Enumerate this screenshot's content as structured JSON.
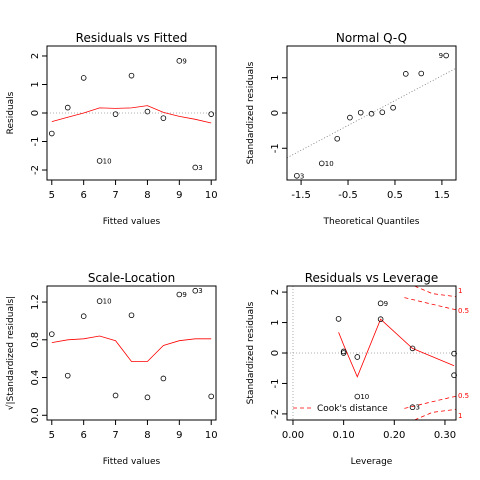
{
  "chart_data": [
    {
      "type": "scatter",
      "title": "Residuals vs Fitted",
      "xlabel": "Fitted values",
      "ylabel": "Residuals",
      "xlim": [
        4.85,
        10.15
      ],
      "ylim": [
        -2.35,
        2.35
      ],
      "xticks": [
        "5",
        "6",
        "7",
        "8",
        "9",
        "10"
      ],
      "yticks": [
        "-2",
        "-1",
        "0",
        "1",
        "2"
      ],
      "reference_line": 0,
      "points": [
        {
          "x": 5.0,
          "y": -0.72,
          "label": ""
        },
        {
          "x": 5.5,
          "y": 0.19,
          "label": ""
        },
        {
          "x": 6.0,
          "y": 1.23,
          "label": ""
        },
        {
          "x": 6.5,
          "y": -1.68,
          "label": "10"
        },
        {
          "x": 7.0,
          "y": -0.04,
          "label": ""
        },
        {
          "x": 7.5,
          "y": 1.31,
          "label": ""
        },
        {
          "x": 8.0,
          "y": 0.05,
          "label": ""
        },
        {
          "x": 8.5,
          "y": -0.18,
          "label": ""
        },
        {
          "x": 9.0,
          "y": 1.83,
          "label": "9"
        },
        {
          "x": 9.5,
          "y": -1.91,
          "label": "3"
        },
        {
          "x": 10.0,
          "y": -0.04,
          "label": ""
        }
      ],
      "smooth": {
        "x": [
          5.0,
          5.5,
          6.0,
          6.5,
          7.0,
          7.5,
          8.0,
          8.5,
          9.0,
          9.5,
          10.0
        ],
        "y": [
          -0.3,
          -0.15,
          0.0,
          0.18,
          0.16,
          0.18,
          0.26,
          0.02,
          -0.12,
          -0.22,
          -0.35
        ]
      }
    },
    {
      "type": "scatter",
      "title": "Normal Q-Q",
      "xlabel": "Theoretical Quantiles",
      "ylabel": "Standardized residuals",
      "xlim": [
        -1.8,
        1.8
      ],
      "ylim": [
        -1.9,
        1.9
      ],
      "xticks": [
        "-1.5",
        "-0.5",
        "0.5",
        "1.5"
      ],
      "yticks": [
        "-1",
        "0",
        "1"
      ],
      "points": [
        {
          "x": -1.59,
          "y": -1.78,
          "label": "3"
        },
        {
          "x": -1.06,
          "y": -1.43,
          "label": "10"
        },
        {
          "x": -0.73,
          "y": -0.73,
          "label": ""
        },
        {
          "x": -0.46,
          "y": -0.13,
          "label": ""
        },
        {
          "x": -0.23,
          "y": 0.01,
          "label": ""
        },
        {
          "x": 0.0,
          "y": -0.02,
          "label": ""
        },
        {
          "x": 0.23,
          "y": 0.02,
          "label": ""
        },
        {
          "x": 0.46,
          "y": 0.15,
          "label": ""
        },
        {
          "x": 0.73,
          "y": 1.11,
          "label": ""
        },
        {
          "x": 1.06,
          "y": 1.12,
          "label": ""
        },
        {
          "x": 1.59,
          "y": 1.63,
          "label": "9"
        }
      ],
      "qqline": {
        "x": [
          -1.8,
          1.8
        ],
        "y": [
          -1.27,
          1.27
        ]
      }
    },
    {
      "type": "scatter",
      "title": "Scale-Location",
      "xlabel": "Fitted values",
      "ylabel": "√|Standardized residuals|",
      "xlim": [
        4.85,
        10.15
      ],
      "ylim": [
        -0.05,
        1.37
      ],
      "xticks": [
        "5",
        "6",
        "7",
        "8",
        "9",
        "10"
      ],
      "yticks": [
        "0.0",
        "0.4",
        "0.8",
        "1.2"
      ],
      "points": [
        {
          "x": 5.0,
          "y": 0.86,
          "label": ""
        },
        {
          "x": 5.5,
          "y": 0.42,
          "label": ""
        },
        {
          "x": 6.0,
          "y": 1.05,
          "label": ""
        },
        {
          "x": 6.5,
          "y": 1.21,
          "label": "10"
        },
        {
          "x": 7.0,
          "y": 0.21,
          "label": ""
        },
        {
          "x": 7.5,
          "y": 1.06,
          "label": ""
        },
        {
          "x": 8.0,
          "y": 0.19,
          "label": ""
        },
        {
          "x": 8.5,
          "y": 0.39,
          "label": ""
        },
        {
          "x": 9.0,
          "y": 1.28,
          "label": "9"
        },
        {
          "x": 9.5,
          "y": 1.32,
          "label": "3"
        },
        {
          "x": 10.0,
          "y": 0.2,
          "label": ""
        }
      ],
      "smooth": {
        "x": [
          5.0,
          5.5,
          6.0,
          6.5,
          7.0,
          7.5,
          8.0,
          8.5,
          9.0,
          9.5,
          10.0
        ],
        "y": [
          0.77,
          0.8,
          0.81,
          0.84,
          0.79,
          0.57,
          0.57,
          0.74,
          0.79,
          0.81,
          0.81
        ]
      }
    },
    {
      "type": "scatter",
      "title": "Residuals vs Leverage",
      "xlabel": "Leverage",
      "ylabel": "Standardized residuals",
      "xlim": [
        -0.0118,
        0.3218
      ],
      "ylim": [
        -2.2,
        2.2
      ],
      "xticks": [
        "0.00",
        "0.10",
        "0.20",
        "0.30"
      ],
      "yticks": [
        "-2",
        "-1",
        "0",
        "1",
        "2"
      ],
      "reference_line": 0,
      "legend": {
        "label": "Cook's distance",
        "position": "bottom-left"
      },
      "points": [
        {
          "x": 0.09,
          "y": 1.12,
          "label": ""
        },
        {
          "x": 0.1,
          "y": 0.05,
          "label": ""
        },
        {
          "x": 0.1,
          "y": 0.0,
          "label": ""
        },
        {
          "x": 0.127,
          "y": -0.13,
          "label": ""
        },
        {
          "x": 0.127,
          "y": -1.43,
          "label": "10"
        },
        {
          "x": 0.173,
          "y": 1.63,
          "label": "9"
        },
        {
          "x": 0.173,
          "y": 1.11,
          "label": ""
        },
        {
          "x": 0.236,
          "y": 0.15,
          "label": ""
        },
        {
          "x": 0.236,
          "y": -1.78,
          "label": "3"
        },
        {
          "x": 0.318,
          "y": -0.02,
          "label": ""
        },
        {
          "x": 0.318,
          "y": -0.73,
          "label": ""
        }
      ],
      "smooth": {
        "x": [
          0.09,
          0.1,
          0.127,
          0.173,
          0.236,
          0.318
        ],
        "y": [
          0.68,
          0.27,
          -0.78,
          1.11,
          0.15,
          -0.42
        ]
      },
      "cook_contours": [
        {
          "level": "1",
          "x": [
            0.24,
            0.275,
            0.3218
          ],
          "y": [
            2.2,
            1.95,
            1.85
          ]
        },
        {
          "level": "0.5",
          "x": [
            0.22,
            0.27,
            0.3218
          ],
          "y": [
            1.82,
            1.62,
            1.42
          ]
        },
        {
          "level": "0.5",
          "x": [
            0.22,
            0.27,
            0.3218
          ],
          "y": [
            -1.82,
            -1.62,
            -1.42
          ]
        },
        {
          "level": "1",
          "x": [
            0.24,
            0.275,
            0.3218
          ],
          "y": [
            -2.2,
            -1.95,
            -1.85
          ]
        }
      ],
      "cook_labels": [
        {
          "text": "1",
          "x": 0.3218,
          "y": 2.05
        },
        {
          "text": "0.5",
          "x": 0.3218,
          "y": 1.4
        },
        {
          "text": "0.5",
          "x": 0.3218,
          "y": -1.4
        },
        {
          "text": "1",
          "x": 0.3218,
          "y": -2.05
        }
      ]
    }
  ]
}
